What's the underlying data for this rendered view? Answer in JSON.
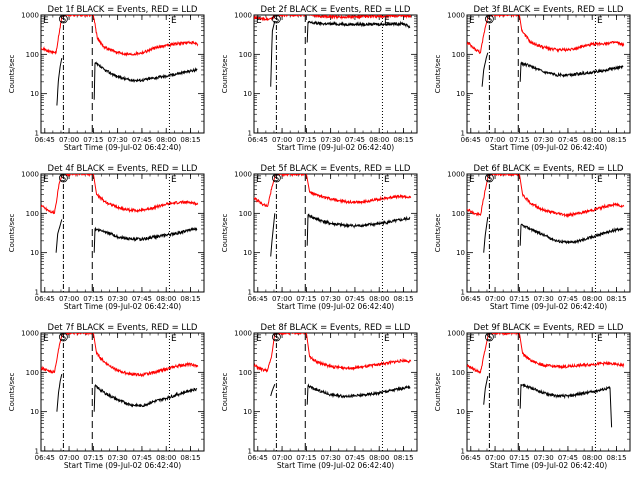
{
  "chart_data": {
    "type": "line",
    "xlabel": "Start Time (09-Jul-02 06:42:40)",
    "ylabel": "Counts/sec",
    "xlim": [
      "06:42:40",
      "08:23:20"
    ],
    "ylim": [
      1,
      1000
    ],
    "log_y": true,
    "xticks": [
      "06:45",
      "07:00",
      "07:15",
      "07:30",
      "07:45",
      "08:00",
      "08:15"
    ],
    "yticks": [
      "1",
      "10",
      "100",
      "1000"
    ],
    "vertical_markers": [
      {
        "time": "06:56:30",
        "label": "S",
        "style": "dash-dot",
        "circled": true
      },
      {
        "time": "07:14:20",
        "label": "",
        "style": "long-dash",
        "circled": false
      },
      {
        "time": "08:02:00",
        "label": "E",
        "style": "dotted",
        "circled": false
      }
    ],
    "marker_E_left_label": "E",
    "series_names": [
      "Events",
      "LLD"
    ],
    "colors": {
      "Events": "#000000",
      "LLD": "#ff0000"
    },
    "panels": [
      {
        "title": "Det 1f BLACK = Events, RED = LLD",
        "LLD": [
          [
            "06:42:40",
            150
          ],
          [
            "06:47:00",
            120
          ],
          [
            "06:52:00",
            110
          ],
          [
            "06:55:30",
            900
          ],
          [
            "06:57:00",
            1000
          ],
          [
            "07:15:00",
            1000
          ],
          [
            "07:17:30",
            250
          ],
          [
            "07:22:00",
            150
          ],
          [
            "07:30:00",
            110
          ],
          [
            "07:38:00",
            100
          ],
          [
            "07:45:00",
            110
          ],
          [
            "07:52:00",
            140
          ],
          [
            "08:00:00",
            170
          ],
          [
            "08:07:00",
            190
          ],
          [
            "08:15:00",
            200
          ],
          [
            "08:19:30",
            180
          ]
        ],
        "Events": [
          [
            "06:52:30",
            5
          ],
          [
            "06:53:20",
            20
          ],
          [
            "06:54:30",
            50
          ],
          [
            "06:55:30",
            80
          ],
          [
            "07:15:30",
            7
          ],
          [
            "07:16:00",
            60
          ],
          [
            "07:22:00",
            40
          ],
          [
            "07:30:00",
            27
          ],
          [
            "07:38:00",
            22
          ],
          [
            "07:45:00",
            22
          ],
          [
            "07:52:00",
            25
          ],
          [
            "08:00:00",
            28
          ],
          [
            "08:08:00",
            33
          ],
          [
            "08:15:00",
            38
          ],
          [
            "08:19:00",
            40
          ]
        ]
      },
      {
        "title": "Det 2f BLACK = Events, RED = LLD",
        "LLD": [
          [
            "06:42:40",
            850
          ],
          [
            "06:47:00",
            800
          ],
          [
            "06:52:00",
            780
          ],
          [
            "06:55:00",
            900
          ],
          [
            "06:57:00",
            1000
          ],
          [
            "07:15:00",
            1000
          ],
          [
            "07:17:00",
            1100
          ],
          [
            "07:20:00",
            950
          ],
          [
            "07:30:00",
            900
          ],
          [
            "07:45:00",
            900
          ],
          [
            "08:00:00",
            920
          ],
          [
            "08:10:00",
            950
          ],
          [
            "08:19:30",
            950
          ]
        ],
        "Events": [
          [
            "06:53:00",
            15
          ],
          [
            "06:54:00",
            400
          ],
          [
            "06:55:30",
            700
          ],
          [
            "07:15:30",
            200
          ],
          [
            "07:16:00",
            650
          ],
          [
            "07:25:00",
            600
          ],
          [
            "07:40:00",
            580
          ],
          [
            "07:55:00",
            580
          ],
          [
            "08:05:00",
            590
          ],
          [
            "08:15:00",
            600
          ],
          [
            "08:19:00",
            500
          ]
        ]
      },
      {
        "title": "Det 3f BLACK = Events, RED = LLD",
        "LLD": [
          [
            "06:42:40",
            200
          ],
          [
            "06:47:00",
            140
          ],
          [
            "06:51:00",
            110
          ],
          [
            "06:54:00",
            500
          ],
          [
            "06:56:00",
            1000
          ],
          [
            "07:15:00",
            1000
          ],
          [
            "07:16:30",
            400
          ],
          [
            "07:22:00",
            200
          ],
          [
            "07:30:00",
            150
          ],
          [
            "07:38:00",
            130
          ],
          [
            "07:45:00",
            130
          ],
          [
            "07:52:00",
            150
          ],
          [
            "08:00:00",
            180
          ],
          [
            "08:08:00",
            190
          ],
          [
            "08:15:00",
            200
          ],
          [
            "08:19:30",
            170
          ]
        ],
        "Events": [
          [
            "06:52:00",
            15
          ],
          [
            "06:53:00",
            40
          ],
          [
            "06:54:30",
            80
          ],
          [
            "06:55:30",
            110
          ],
          [
            "07:15:30",
            20
          ],
          [
            "07:16:00",
            60
          ],
          [
            "07:22:00",
            50
          ],
          [
            "07:30:00",
            35
          ],
          [
            "07:38:00",
            30
          ],
          [
            "07:45:00",
            30
          ],
          [
            "07:52:00",
            32
          ],
          [
            "08:00:00",
            35
          ],
          [
            "08:08:00",
            40
          ],
          [
            "08:15:00",
            45
          ],
          [
            "08:19:00",
            48
          ]
        ]
      },
      {
        "title": "Det 4f BLACK = Events, RED = LLD",
        "LLD": [
          [
            "06:42:40",
            160
          ],
          [
            "06:47:00",
            120
          ],
          [
            "06:51:00",
            100
          ],
          [
            "06:54:00",
            600
          ],
          [
            "06:56:00",
            1000
          ],
          [
            "07:15:00",
            1000
          ],
          [
            "07:17:00",
            300
          ],
          [
            "07:22:00",
            200
          ],
          [
            "07:30:00",
            140
          ],
          [
            "07:38:00",
            120
          ],
          [
            "07:45:00",
            120
          ],
          [
            "07:52:00",
            140
          ],
          [
            "08:00:00",
            170
          ],
          [
            "08:08:00",
            190
          ],
          [
            "08:15:00",
            190
          ],
          [
            "08:19:30",
            170
          ]
        ],
        "Events": [
          [
            "06:52:00",
            10
          ],
          [
            "06:53:00",
            30
          ],
          [
            "06:54:30",
            50
          ],
          [
            "06:55:30",
            70
          ],
          [
            "07:15:30",
            10
          ],
          [
            "07:16:00",
            40
          ],
          [
            "07:22:00",
            35
          ],
          [
            "07:30:00",
            25
          ],
          [
            "07:38:00",
            22
          ],
          [
            "07:45:00",
            22
          ],
          [
            "07:52:00",
            25
          ],
          [
            "08:00:00",
            28
          ],
          [
            "08:08:00",
            32
          ],
          [
            "08:15:00",
            38
          ],
          [
            "08:19:00",
            40
          ]
        ]
      },
      {
        "title": "Det 5f BLACK = Events, RED = LLD",
        "LLD": [
          [
            "06:42:40",
            250
          ],
          [
            "06:47:00",
            180
          ],
          [
            "06:51:00",
            150
          ],
          [
            "06:54:00",
            500
          ],
          [
            "06:56:00",
            1000
          ],
          [
            "07:15:00",
            1000
          ],
          [
            "07:17:00",
            350
          ],
          [
            "07:22:00",
            280
          ],
          [
            "07:30:00",
            230
          ],
          [
            "07:38:00",
            200
          ],
          [
            "07:45:00",
            190
          ],
          [
            "07:52:00",
            200
          ],
          [
            "08:00:00",
            230
          ],
          [
            "08:08:00",
            260
          ],
          [
            "08:15:00",
            270
          ],
          [
            "08:19:30",
            250
          ]
        ],
        "Events": [
          [
            "06:53:00",
            8
          ],
          [
            "06:54:00",
            25
          ],
          [
            "06:55:30",
            100
          ],
          [
            "07:15:30",
            15
          ],
          [
            "07:16:00",
            90
          ],
          [
            "07:22:00",
            70
          ],
          [
            "07:30:00",
            55
          ],
          [
            "07:38:00",
            50
          ],
          [
            "07:45:00",
            48
          ],
          [
            "07:52:00",
            50
          ],
          [
            "08:00:00",
            55
          ],
          [
            "08:08:00",
            62
          ],
          [
            "08:15:00",
            70
          ],
          [
            "08:19:00",
            75
          ]
        ]
      },
      {
        "title": "Det 6f BLACK = Events, RED = LLD",
        "LLD": [
          [
            "06:42:40",
            130
          ],
          [
            "06:47:00",
            100
          ],
          [
            "06:51:00",
            90
          ],
          [
            "06:54:00",
            400
          ],
          [
            "06:56:00",
            1000
          ],
          [
            "07:15:00",
            1000
          ],
          [
            "07:17:00",
            300
          ],
          [
            "07:22:00",
            180
          ],
          [
            "07:30:00",
            120
          ],
          [
            "07:38:00",
            100
          ],
          [
            "07:45:00",
            90
          ],
          [
            "07:52:00",
            100
          ],
          [
            "08:00:00",
            120
          ],
          [
            "08:08:00",
            150
          ],
          [
            "08:15:00",
            170
          ],
          [
            "08:19:30",
            150
          ]
        ],
        "Events": [
          [
            "06:53:00",
            10
          ],
          [
            "06:54:00",
            30
          ],
          [
            "06:55:30",
            80
          ],
          [
            "07:15:30",
            15
          ],
          [
            "07:16:00",
            50
          ],
          [
            "07:22:00",
            40
          ],
          [
            "07:30:00",
            28
          ],
          [
            "07:38:00",
            20
          ],
          [
            "07:45:00",
            18
          ],
          [
            "07:52:00",
            20
          ],
          [
            "08:00:00",
            25
          ],
          [
            "08:08:00",
            32
          ],
          [
            "08:15:00",
            38
          ],
          [
            "08:19:00",
            42
          ]
        ]
      },
      {
        "title": "Det 7f BLACK = Events, RED = LLD",
        "LLD": [
          [
            "06:42:40",
            130
          ],
          [
            "06:47:00",
            110
          ],
          [
            "06:51:00",
            100
          ],
          [
            "06:54:00",
            500
          ],
          [
            "06:56:00",
            1000
          ],
          [
            "07:15:00",
            1000
          ],
          [
            "07:17:00",
            300
          ],
          [
            "07:22:00",
            180
          ],
          [
            "07:30:00",
            110
          ],
          [
            "07:38:00",
            90
          ],
          [
            "07:45:00",
            85
          ],
          [
            "07:52:00",
            100
          ],
          [
            "08:00:00",
            120
          ],
          [
            "08:08:00",
            150
          ],
          [
            "08:15:00",
            160
          ],
          [
            "08:19:30",
            140
          ]
        ],
        "Events": [
          [
            "06:52:30",
            10
          ],
          [
            "06:53:30",
            30
          ],
          [
            "06:54:30",
            60
          ],
          [
            "06:55:30",
            90
          ],
          [
            "07:15:30",
            10
          ],
          [
            "07:16:00",
            45
          ],
          [
            "07:22:00",
            30
          ],
          [
            "07:30:00",
            20
          ],
          [
            "07:38:00",
            15
          ],
          [
            "07:45:00",
            14
          ],
          [
            "07:52:00",
            18
          ],
          [
            "08:00:00",
            22
          ],
          [
            "08:08:00",
            28
          ],
          [
            "08:15:00",
            35
          ],
          [
            "08:19:00",
            38
          ]
        ]
      },
      {
        "title": "Det 8f BLACK = Events, RED = LLD",
        "LLD": [
          [
            "06:42:40",
            150
          ],
          [
            "06:47:00",
            120
          ],
          [
            "06:51:00",
            110
          ],
          [
            "06:53:30",
            250
          ],
          [
            "06:55:30",
            1000
          ],
          [
            "07:15:00",
            1000
          ],
          [
            "07:17:00",
            250
          ],
          [
            "07:22:00",
            180
          ],
          [
            "07:30:00",
            140
          ],
          [
            "07:38:00",
            130
          ],
          [
            "07:45:00",
            130
          ],
          [
            "07:52:00",
            140
          ],
          [
            "08:00:00",
            160
          ],
          [
            "08:08:00",
            180
          ],
          [
            "08:15:00",
            200
          ],
          [
            "08:19:30",
            190
          ]
        ],
        "Events": [
          [
            "06:53:00",
            25
          ],
          [
            "06:54:00",
            35
          ],
          [
            "06:55:30",
            50
          ],
          [
            "07:15:30",
            15
          ],
          [
            "07:16:00",
            45
          ],
          [
            "07:22:00",
            35
          ],
          [
            "07:30:00",
            27
          ],
          [
            "07:38:00",
            25
          ],
          [
            "07:45:00",
            25
          ],
          [
            "07:52:00",
            27
          ],
          [
            "08:00:00",
            30
          ],
          [
            "08:08:00",
            35
          ],
          [
            "08:15:00",
            40
          ],
          [
            "08:19:00",
            42
          ]
        ]
      },
      {
        "title": "Det 9f BLACK = Events, RED = LLD",
        "LLD": [
          [
            "06:42:40",
            150
          ],
          [
            "06:47:00",
            120
          ],
          [
            "06:51:00",
            100
          ],
          [
            "06:54:00",
            400
          ],
          [
            "06:56:00",
            1000
          ],
          [
            "07:15:00",
            1000
          ],
          [
            "07:17:00",
            300
          ],
          [
            "07:22:00",
            200
          ],
          [
            "07:30:00",
            150
          ],
          [
            "07:38:00",
            140
          ],
          [
            "07:45:00",
            140
          ],
          [
            "07:52:00",
            150
          ],
          [
            "08:00:00",
            160
          ],
          [
            "08:08:00",
            170
          ],
          [
            "08:15:00",
            160
          ],
          [
            "08:19:30",
            150
          ]
        ],
        "Events": [
          [
            "06:53:00",
            15
          ],
          [
            "06:54:00",
            40
          ],
          [
            "06:55:30",
            80
          ],
          [
            "07:15:30",
            12
          ],
          [
            "07:16:00",
            50
          ],
          [
            "07:22:00",
            40
          ],
          [
            "07:30:00",
            30
          ],
          [
            "07:38:00",
            25
          ],
          [
            "07:45:00",
            25
          ],
          [
            "07:52:00",
            28
          ],
          [
            "08:00:00",
            32
          ],
          [
            "08:08:00",
            38
          ],
          [
            "08:11:00",
            40
          ],
          [
            "08:12:00",
            4
          ]
        ]
      }
    ]
  }
}
